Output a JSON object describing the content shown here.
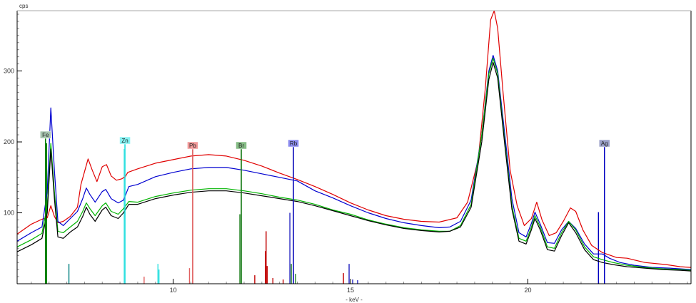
{
  "chart_data": {
    "type": "line",
    "title": "",
    "xlabel": "- keV -",
    "ylabel": "cps",
    "xlim": [
      5.6,
      24.6
    ],
    "ylim": [
      0,
      385
    ],
    "x_ticks": [
      10,
      15,
      20
    ],
    "y_ticks": [
      100,
      200,
      300
    ],
    "x_minor_step": 0.5,
    "y_minor_step": 10,
    "grid": false,
    "legend": "none",
    "series": [
      {
        "color": "#e00000",
        "points": [
          [
            5.6,
            70
          ],
          [
            6.0,
            84
          ],
          [
            6.3,
            91
          ],
          [
            6.45,
            93
          ],
          [
            6.55,
            110
          ],
          [
            6.65,
            95
          ],
          [
            6.75,
            86
          ],
          [
            6.9,
            88
          ],
          [
            7.1,
            95
          ],
          [
            7.3,
            108
          ],
          [
            7.4,
            140
          ],
          [
            7.5,
            158
          ],
          [
            7.6,
            176
          ],
          [
            7.72,
            160
          ],
          [
            7.85,
            144
          ],
          [
            8.0,
            165
          ],
          [
            8.12,
            168
          ],
          [
            8.25,
            152
          ],
          [
            8.4,
            146
          ],
          [
            8.55,
            148
          ],
          [
            8.65,
            151
          ],
          [
            8.72,
            157
          ],
          [
            9.0,
            162
          ],
          [
            9.5,
            170
          ],
          [
            10.0,
            175
          ],
          [
            10.5,
            180
          ],
          [
            11.0,
            182
          ],
          [
            11.5,
            180
          ],
          [
            12.0,
            174
          ],
          [
            12.5,
            166
          ],
          [
            13.0,
            156
          ],
          [
            13.5,
            147
          ],
          [
            14.0,
            137
          ],
          [
            14.5,
            126
          ],
          [
            15.0,
            114
          ],
          [
            15.5,
            104
          ],
          [
            16.0,
            96
          ],
          [
            16.5,
            91
          ],
          [
            17.0,
            88
          ],
          [
            17.5,
            87
          ],
          [
            18.0,
            93
          ],
          [
            18.3,
            115
          ],
          [
            18.6,
            175
          ],
          [
            18.8,
            275
          ],
          [
            18.95,
            372
          ],
          [
            19.05,
            386
          ],
          [
            19.15,
            360
          ],
          [
            19.3,
            270
          ],
          [
            19.5,
            160
          ],
          [
            19.7,
            110
          ],
          [
            19.9,
            82
          ],
          [
            20.1,
            92
          ],
          [
            20.25,
            115
          ],
          [
            20.4,
            90
          ],
          [
            20.6,
            68
          ],
          [
            20.8,
            72
          ],
          [
            21.0,
            88
          ],
          [
            21.2,
            107
          ],
          [
            21.35,
            102
          ],
          [
            21.55,
            76
          ],
          [
            21.8,
            54
          ],
          [
            22.1,
            44
          ],
          [
            22.5,
            37
          ],
          [
            22.8,
            36
          ],
          [
            23.3,
            30
          ],
          [
            23.9,
            27
          ],
          [
            24.3,
            24
          ],
          [
            24.6,
            23
          ]
        ]
      },
      {
        "color": "#0000d0",
        "points": [
          [
            5.6,
            60
          ],
          [
            6.0,
            72
          ],
          [
            6.3,
            80
          ],
          [
            6.45,
            130
          ],
          [
            6.55,
            248
          ],
          [
            6.65,
            160
          ],
          [
            6.75,
            88
          ],
          [
            6.9,
            82
          ],
          [
            7.1,
            92
          ],
          [
            7.3,
            102
          ],
          [
            7.45,
            120
          ],
          [
            7.55,
            135
          ],
          [
            7.65,
            126
          ],
          [
            7.8,
            115
          ],
          [
            8.0,
            130
          ],
          [
            8.1,
            133
          ],
          [
            8.25,
            120
          ],
          [
            8.45,
            114
          ],
          [
            8.6,
            118
          ],
          [
            8.75,
            137
          ],
          [
            9.0,
            140
          ],
          [
            9.5,
            151
          ],
          [
            10.0,
            157
          ],
          [
            10.5,
            162
          ],
          [
            11.0,
            164
          ],
          [
            11.5,
            164
          ],
          [
            12.0,
            160
          ],
          [
            12.5,
            155
          ],
          [
            13.0,
            150
          ],
          [
            13.5,
            145
          ],
          [
            14.0,
            131
          ],
          [
            14.5,
            121
          ],
          [
            15.0,
            110
          ],
          [
            15.5,
            100
          ],
          [
            16.0,
            92
          ],
          [
            16.5,
            86
          ],
          [
            17.0,
            82
          ],
          [
            17.5,
            79
          ],
          [
            17.8,
            80
          ],
          [
            18.1,
            88
          ],
          [
            18.4,
            118
          ],
          [
            18.7,
            210
          ],
          [
            18.9,
            300
          ],
          [
            19.02,
            322
          ],
          [
            19.15,
            300
          ],
          [
            19.35,
            210
          ],
          [
            19.55,
            120
          ],
          [
            19.75,
            72
          ],
          [
            19.95,
            66
          ],
          [
            20.1,
            85
          ],
          [
            20.2,
            101
          ],
          [
            20.35,
            84
          ],
          [
            20.55,
            58
          ],
          [
            20.75,
            57
          ],
          [
            20.95,
            76
          ],
          [
            21.15,
            88
          ],
          [
            21.35,
            78
          ],
          [
            21.6,
            56
          ],
          [
            21.85,
            42
          ],
          [
            22.1,
            42
          ],
          [
            22.3,
            36
          ],
          [
            22.6,
            30
          ],
          [
            23.0,
            26
          ],
          [
            23.5,
            23
          ],
          [
            24.0,
            22
          ],
          [
            24.6,
            20
          ]
        ]
      },
      {
        "color": "#00b400",
        "points": [
          [
            5.6,
            52
          ],
          [
            6.0,
            62
          ],
          [
            6.3,
            71
          ],
          [
            6.45,
            110
          ],
          [
            6.55,
            198
          ],
          [
            6.65,
            130
          ],
          [
            6.75,
            74
          ],
          [
            6.9,
            72
          ],
          [
            7.1,
            80
          ],
          [
            7.3,
            88
          ],
          [
            7.45,
            102
          ],
          [
            7.55,
            114
          ],
          [
            7.65,
            106
          ],
          [
            7.8,
            96
          ],
          [
            8.0,
            110
          ],
          [
            8.1,
            114
          ],
          [
            8.25,
            102
          ],
          [
            8.45,
            98
          ],
          [
            8.6,
            106
          ],
          [
            8.75,
            116
          ],
          [
            9.0,
            115
          ],
          [
            9.5,
            123
          ],
          [
            10.0,
            128
          ],
          [
            10.5,
            132
          ],
          [
            11.0,
            134
          ],
          [
            11.5,
            134
          ],
          [
            12.0,
            131
          ],
          [
            12.5,
            127
          ],
          [
            13.0,
            122
          ],
          [
            13.5,
            118
          ],
          [
            14.0,
            112
          ],
          [
            14.5,
            104
          ],
          [
            15.0,
            98
          ],
          [
            15.5,
            90
          ],
          [
            16.0,
            84
          ],
          [
            16.5,
            79
          ],
          [
            17.0,
            76
          ],
          [
            17.5,
            74
          ],
          [
            17.8,
            74
          ],
          [
            18.1,
            82
          ],
          [
            18.4,
            112
          ],
          [
            18.7,
            210
          ],
          [
            18.9,
            296
          ],
          [
            19.02,
            318
          ],
          [
            19.15,
            296
          ],
          [
            19.35,
            200
          ],
          [
            19.55,
            110
          ],
          [
            19.75,
            64
          ],
          [
            19.95,
            60
          ],
          [
            20.1,
            80
          ],
          [
            20.2,
            96
          ],
          [
            20.35,
            80
          ],
          [
            20.55,
            52
          ],
          [
            20.75,
            50
          ],
          [
            20.95,
            72
          ],
          [
            21.15,
            88
          ],
          [
            21.35,
            76
          ],
          [
            21.6,
            52
          ],
          [
            21.85,
            38
          ],
          [
            22.1,
            34
          ],
          [
            22.4,
            30
          ],
          [
            22.8,
            26
          ],
          [
            23.3,
            23
          ],
          [
            23.8,
            21
          ],
          [
            24.3,
            20
          ],
          [
            24.6,
            19
          ]
        ]
      },
      {
        "color": "#000000",
        "points": [
          [
            5.6,
            45
          ],
          [
            6.0,
            55
          ],
          [
            6.3,
            64
          ],
          [
            6.45,
            100
          ],
          [
            6.55,
            190
          ],
          [
            6.65,
            120
          ],
          [
            6.75,
            66
          ],
          [
            6.9,
            64
          ],
          [
            7.1,
            73
          ],
          [
            7.3,
            80
          ],
          [
            7.45,
            95
          ],
          [
            7.55,
            108
          ],
          [
            7.65,
            98
          ],
          [
            7.8,
            88
          ],
          [
            8.0,
            104
          ],
          [
            8.1,
            108
          ],
          [
            8.25,
            96
          ],
          [
            8.45,
            92
          ],
          [
            8.6,
            100
          ],
          [
            8.75,
            112
          ],
          [
            9.0,
            112
          ],
          [
            9.5,
            120
          ],
          [
            10.0,
            125
          ],
          [
            10.5,
            129
          ],
          [
            11.0,
            131
          ],
          [
            11.5,
            131
          ],
          [
            12.0,
            128
          ],
          [
            12.5,
            124
          ],
          [
            13.0,
            120
          ],
          [
            13.5,
            116
          ],
          [
            14.0,
            110
          ],
          [
            14.5,
            103
          ],
          [
            15.0,
            96
          ],
          [
            15.5,
            89
          ],
          [
            16.0,
            83
          ],
          [
            16.5,
            78
          ],
          [
            17.0,
            75
          ],
          [
            17.5,
            73
          ],
          [
            17.8,
            74
          ],
          [
            18.1,
            80
          ],
          [
            18.4,
            108
          ],
          [
            18.7,
            200
          ],
          [
            18.9,
            288
          ],
          [
            19.02,
            312
          ],
          [
            19.15,
            290
          ],
          [
            19.35,
            195
          ],
          [
            19.55,
            105
          ],
          [
            19.75,
            60
          ],
          [
            19.95,
            56
          ],
          [
            20.1,
            76
          ],
          [
            20.2,
            92
          ],
          [
            20.35,
            76
          ],
          [
            20.55,
            48
          ],
          [
            20.75,
            46
          ],
          [
            20.95,
            68
          ],
          [
            21.15,
            86
          ],
          [
            21.35,
            72
          ],
          [
            21.6,
            48
          ],
          [
            21.85,
            34
          ],
          [
            22.1,
            30
          ],
          [
            22.4,
            27
          ],
          [
            22.8,
            24
          ],
          [
            23.3,
            22
          ],
          [
            23.8,
            20
          ],
          [
            24.3,
            19
          ],
          [
            24.6,
            18
          ]
        ]
      }
    ],
    "element_markers": [
      {
        "label": "Fe",
        "x": 6.4,
        "height": 205,
        "color": "#008000",
        "badge_color": "#a6c3ae"
      },
      {
        "label": "Zn",
        "x": 8.64,
        "height": 197,
        "color": "#30e0e0",
        "badge_color": "#86f3f3"
      },
      {
        "label": "Pb",
        "x": 10.55,
        "height": 190,
        "color": "#e06060",
        "badge_color": "#f19898"
      },
      {
        "label": "Br",
        "x": 11.92,
        "height": 190,
        "color": "#208020",
        "badge_color": "#86bd86"
      },
      {
        "label": "Rb",
        "x": 13.39,
        "height": 193,
        "color": "#2020c0",
        "badge_color": "#8c8cef"
      },
      {
        "label": "Ag",
        "x": 22.16,
        "height": 193,
        "color": "#0000c0",
        "badge_color": "#9aa0c8"
      }
    ],
    "emission_lines": [
      {
        "x": 6.4,
        "height": 205,
        "color": "#008000"
      },
      {
        "x": 6.43,
        "height": 198,
        "color": "#008000"
      },
      {
        "x": 7.06,
        "height": 28,
        "color": "#008080"
      },
      {
        "x": 8.64,
        "height": 197,
        "color": "#30e0e0"
      },
      {
        "x": 8.62,
        "height": 190,
        "color": "#30e0e0"
      },
      {
        "x": 9.18,
        "height": 10,
        "color": "#e06060"
      },
      {
        "x": 9.57,
        "height": 28,
        "color": "#30e0e0"
      },
      {
        "x": 9.6,
        "height": 20,
        "color": "#30e0e0"
      },
      {
        "x": 10.46,
        "height": 22,
        "color": "#e06060"
      },
      {
        "x": 10.55,
        "height": 190,
        "color": "#e06060"
      },
      {
        "x": 11.88,
        "height": 98,
        "color": "#208020"
      },
      {
        "x": 11.92,
        "height": 190,
        "color": "#208020"
      },
      {
        "x": 12.3,
        "height": 12,
        "color": "#c00000"
      },
      {
        "x": 12.62,
        "height": 74,
        "color": "#c00000"
      },
      {
        "x": 12.6,
        "height": 46,
        "color": "#c00000"
      },
      {
        "x": 12.65,
        "height": 25,
        "color": "#c00000"
      },
      {
        "x": 12.81,
        "height": 8,
        "color": "#c00000"
      },
      {
        "x": 13.1,
        "height": 6,
        "color": "#c00000"
      },
      {
        "x": 13.29,
        "height": 100,
        "color": "#2020c0"
      },
      {
        "x": 13.33,
        "height": 28,
        "color": "#208020"
      },
      {
        "x": 13.39,
        "height": 193,
        "color": "#2020c0"
      },
      {
        "x": 13.45,
        "height": 14,
        "color": "#208020"
      },
      {
        "x": 14.8,
        "height": 15,
        "color": "#c00000"
      },
      {
        "x": 14.96,
        "height": 28,
        "color": "#2020c0"
      },
      {
        "x": 15.06,
        "height": 6,
        "color": "#2020c0"
      },
      {
        "x": 15.2,
        "height": 5,
        "color": "#2020c0"
      },
      {
        "x": 21.99,
        "height": 101,
        "color": "#0000c0"
      },
      {
        "x": 22.16,
        "height": 193,
        "color": "#0000c0"
      }
    ]
  }
}
